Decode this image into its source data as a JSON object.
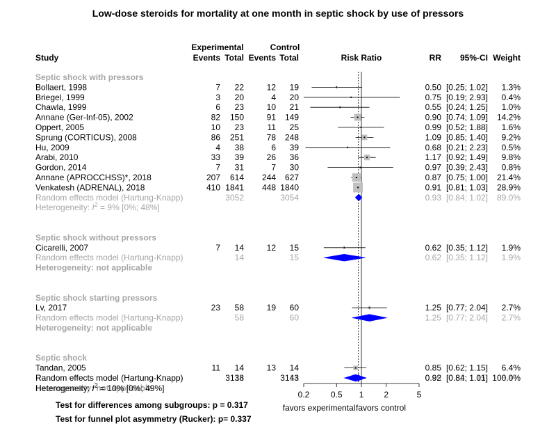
{
  "chart_data": {
    "type": "forest",
    "title": "Low-dose steroids for mortality at one month in septic shock by use of pressors",
    "columns": {
      "study": "Study",
      "experimental": "Experimental",
      "control": "Control",
      "events": "Events",
      "total": "Total",
      "risk_ratio": "Risk Ratio",
      "rr": "RR",
      "ci": "95%-CI",
      "weight": "Weight"
    },
    "x_axis": {
      "scale": "log",
      "ticks": [
        "0.2",
        "0.5",
        "1",
        "2",
        "5"
      ],
      "range": [
        0.2,
        5
      ],
      "left_label": "favors experimental",
      "right_label": "favors control",
      "pooled_estimate_line": 0.92
    },
    "subgroups": [
      {
        "name": "Septic shock with pressors",
        "studies": [
          {
            "study": "Bollaert, 1998",
            "e_events": "7",
            "e_total": "22",
            "c_events": "12",
            "c_total": "19",
            "rr": 0.5,
            "lo": 0.25,
            "hi": 1.02,
            "rr_text": "0.50",
            "ci_text": "[0.25; 1.02]",
            "weight": "1.3%"
          },
          {
            "study": "Briegel, 1999",
            "e_events": "3",
            "e_total": "20",
            "c_events": "4",
            "c_total": "20",
            "rr": 0.75,
            "lo": 0.19,
            "hi": 2.93,
            "rr_text": "0.75",
            "ci_text": "[0.19; 2.93]",
            "weight": "0.4%"
          },
          {
            "study": "Chawla, 1999",
            "e_events": "6",
            "e_total": "23",
            "c_events": "10",
            "c_total": "21",
            "rr": 0.55,
            "lo": 0.24,
            "hi": 1.25,
            "rr_text": "0.55",
            "ci_text": "[0.24; 1.25]",
            "weight": "1.0%"
          },
          {
            "study": "Annane (Ger-Inf-05), 2002",
            "e_events": "82",
            "e_total": "150",
            "c_events": "91",
            "c_total": "149",
            "rr": 0.9,
            "lo": 0.74,
            "hi": 1.09,
            "rr_text": "0.90",
            "ci_text": "[0.74; 1.09]",
            "weight": "14.2%"
          },
          {
            "study": "Oppert, 2005",
            "e_events": "10",
            "e_total": "23",
            "c_events": "11",
            "c_total": "25",
            "rr": 0.99,
            "lo": 0.52,
            "hi": 1.88,
            "rr_text": "0.99",
            "ci_text": "[0.52; 1.88]",
            "weight": "1.6%"
          },
          {
            "study": "Sprung (CORTICUS), 2008",
            "e_events": "86",
            "e_total": "251",
            "c_events": "78",
            "c_total": "248",
            "rr": 1.09,
            "lo": 0.85,
            "hi": 1.4,
            "rr_text": "1.09",
            "ci_text": "[0.85; 1.40]",
            "weight": "9.2%"
          },
          {
            "study": "Hu, 2009",
            "e_events": "4",
            "e_total": "38",
            "c_events": "6",
            "c_total": "39",
            "rr": 0.68,
            "lo": 0.21,
            "hi": 2.23,
            "rr_text": "0.68",
            "ci_text": "[0.21; 2.23]",
            "weight": "0.5%"
          },
          {
            "study": "Arabi, 2010",
            "e_events": "33",
            "e_total": "39",
            "c_events": "26",
            "c_total": "36",
            "rr": 1.17,
            "lo": 0.92,
            "hi": 1.49,
            "rr_text": "1.17",
            "ci_text": "[0.92; 1.49]",
            "weight": "9.8%"
          },
          {
            "study": "Gordon, 2014",
            "e_events": "7",
            "e_total": "31",
            "c_events": "7",
            "c_total": "30",
            "rr": 0.97,
            "lo": 0.39,
            "hi": 2.43,
            "rr_text": "0.97",
            "ci_text": "[0.39; 2.43]",
            "weight": "0.8%"
          },
          {
            "study": "Annane (APROCCHSS)*, 2018",
            "e_events": "207",
            "e_total": "614",
            "c_events": "244",
            "c_total": "627",
            "rr": 0.87,
            "lo": 0.75,
            "hi": 1.0,
            "rr_text": "0.87",
            "ci_text": "[0.75; 1.00]",
            "weight": "21.4%"
          },
          {
            "study": "Venkatesh  (ADRENAL), 2018",
            "e_events": "410",
            "e_total": "1841",
            "c_events": "448",
            "c_total": "1840",
            "rr": 0.91,
            "lo": 0.81,
            "hi": 1.03,
            "rr_text": "0.91",
            "ci_text": "[0.81; 1.03]",
            "weight": "28.9%"
          }
        ],
        "pooled": {
          "label": "Random effects model  (Hartung-Knapp)",
          "e_total": "3052",
          "c_total": "3054",
          "rr": 0.93,
          "lo": 0.84,
          "hi": 1.02,
          "rr_text": "0.93",
          "ci_text": "[0.84; 1.02]",
          "weight": "89.0%"
        },
        "heterogeneity": {
          "prefix": "Heterogeneity: ",
          "stat": "I",
          "sup": "2",
          "value": " = 9% [0%; 48%]"
        }
      },
      {
        "name": "Septic shock without pressors",
        "studies": [
          {
            "study": "Cicarelli, 2007",
            "e_events": "7",
            "e_total": "14",
            "c_events": "12",
            "c_total": "15",
            "rr": 0.62,
            "lo": 0.35,
            "hi": 1.12,
            "rr_text": "0.62",
            "ci_text": "[0.35; 1.12]",
            "weight": "1.9%"
          }
        ],
        "pooled": {
          "label": "Random effects model  (Hartung-Knapp)",
          "e_total": "14",
          "c_total": "15",
          "rr": 0.62,
          "lo": 0.35,
          "hi": 1.12,
          "rr_text": "0.62",
          "ci_text": "[0.35; 1.12]",
          "weight": "1.9%"
        },
        "heterogeneity_text": "Heterogeneity: not applicable"
      },
      {
        "name": "Septic shock starting pressors",
        "studies": [
          {
            "study": "Lv, 2017",
            "e_events": "23",
            "e_total": "58",
            "c_events": "19",
            "c_total": "60",
            "rr": 1.25,
            "lo": 0.77,
            "hi": 2.04,
            "rr_text": "1.25",
            "ci_text": "[0.77; 2.04]",
            "weight": "2.7%"
          }
        ],
        "pooled": {
          "label": "Random effects model  (Hartung-Knapp)",
          "e_total": "58",
          "c_total": "60",
          "rr": 1.25,
          "lo": 0.77,
          "hi": 2.04,
          "rr_text": "1.25",
          "ci_text": "[0.77; 2.04]",
          "weight": "2.7%"
        },
        "heterogeneity_text": "Heterogeneity: not applicable"
      },
      {
        "name": "Septic shock",
        "studies": [
          {
            "study": "Tandan, 2005",
            "e_events": "11",
            "e_total": "14",
            "c_events": "13",
            "c_total": "14",
            "rr": 0.85,
            "lo": 0.62,
            "hi": 1.15,
            "rr_text": "0.85",
            "ci_text": "[0.62; 1.15]",
            "weight": "6.4%"
          }
        ],
        "pooled": {
          "label": "Random effects model  (Hartung-Knapp)",
          "e_total": "14",
          "c_total": "14",
          "rr": 0.85,
          "lo": 0.62,
          "hi": 1.15,
          "rr_text": "0.85",
          "ci_text": "[0.62; 1.15]",
          "weight": "6.4%"
        },
        "heterogeneity_text": "Heterogeneity: not applicable"
      }
    ],
    "overall": {
      "label": "Random effects model  (Hartung-Knapp)",
      "e_total": "3138",
      "c_total": "3143",
      "rr": 0.92,
      "lo": 0.84,
      "hi": 1.01,
      "rr_text": "0.92",
      "ci_text": "[0.84; 1.01]",
      "weight": "100.0%",
      "heterogeneity": {
        "prefix": "Heterogeneity: ",
        "stat": "I",
        "sup": "2",
        "value": " = 10% [0%; 49%]"
      }
    },
    "tests": [
      "Test for differences among subgroups: p = 0.317",
      "Test for funnel plot asymmetry (Rucker): p= 0.337"
    ],
    "colors": {
      "diamond": "#0000ff",
      "grey_text": "#a6a6a6",
      "square": "#c0c0c0"
    }
  }
}
